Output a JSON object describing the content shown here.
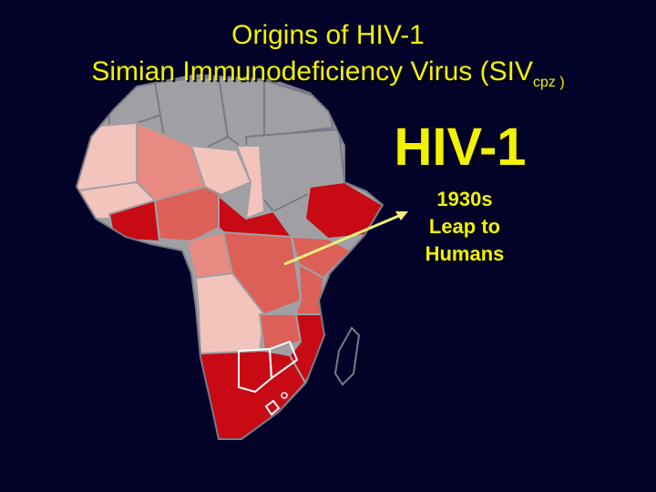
{
  "title": {
    "line1": "Origins of HIV-1",
    "line2_prefix": "Simian Immunodeficiency Virus (SIV",
    "line2_subscript": "cpz )"
  },
  "annotation": {
    "heading": "HIV-1",
    "line1": "1930s",
    "line2": "Leap to",
    "line3": "Humans"
  },
  "colors": {
    "background": "#03032a",
    "text": "#f2f200",
    "north_africa": "#a0a0a4",
    "light_pink": "#f2c4bc",
    "pink": "#e88a82",
    "red_medium": "#dc6058",
    "red_dark": "#c80a14",
    "border": "#7a7a86",
    "arrow": "#f0f07a"
  }
}
